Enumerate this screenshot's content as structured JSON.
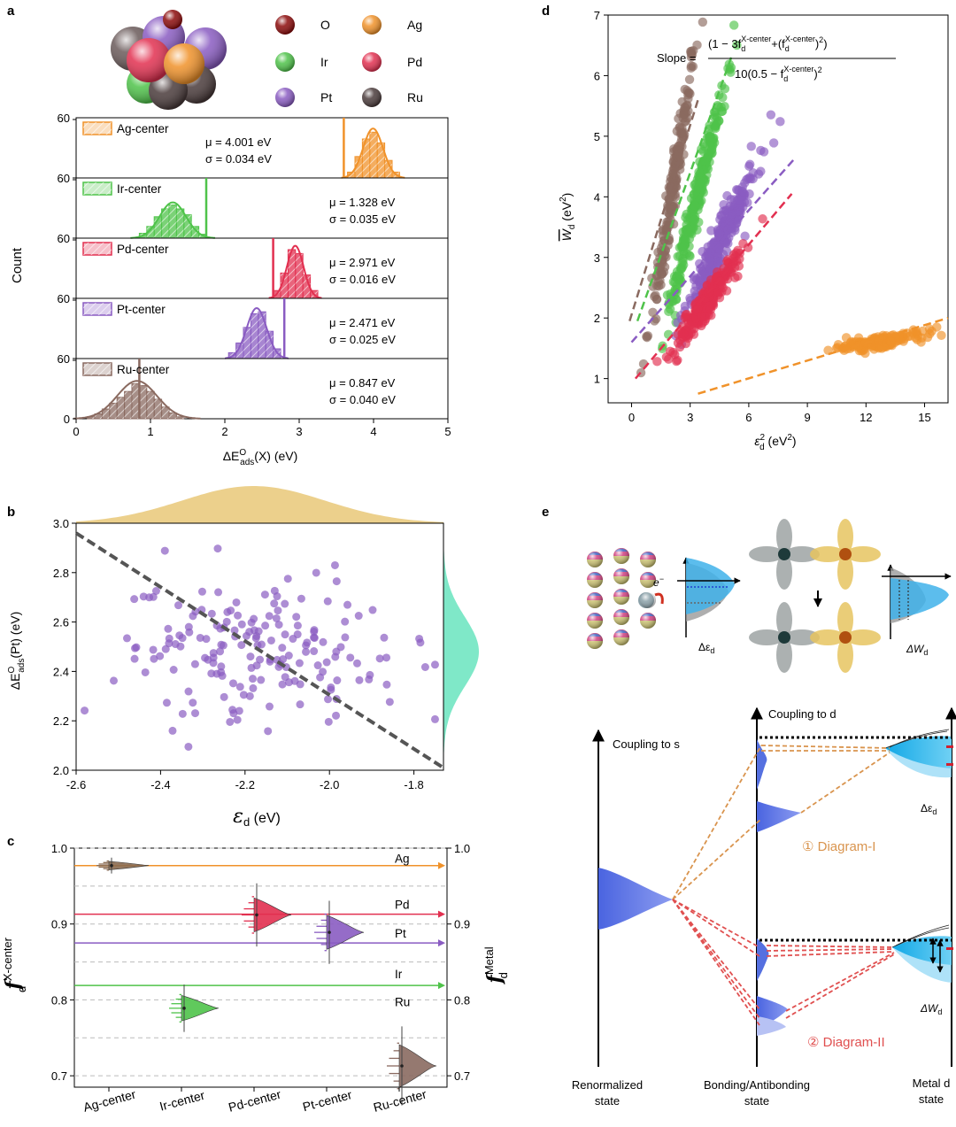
{
  "panel_labels": {
    "a": "a",
    "b": "b",
    "c": "c",
    "d": "d",
    "e": "e"
  },
  "colors": {
    "O": "#8b0a0a",
    "Ag": "#f0922a",
    "Ir": "#4fc34a",
    "Pd": "#e23050",
    "Pt": "#8a5cc2",
    "Ru": "#8a6a60",
    "Ru_sphere": "#4a3b3b",
    "marginal_top": "#ecd08c",
    "marginal_right": "#7fe8c8",
    "blue_state": "#5570e0",
    "metal_d": "#2bb5ea",
    "diagram_I": "#d9944e",
    "diagram_II": "#e05050"
  },
  "legend_a": [
    {
      "el": "O",
      "label": "O",
      "color": "#8b0a0a"
    },
    {
      "el": "Ag",
      "label": "Ag",
      "color": "#f0922a"
    },
    {
      "el": "Ir",
      "label": "Ir",
      "color": "#4fc34a"
    },
    {
      "el": "Pd",
      "label": "Pd",
      "color": "#e23050"
    },
    {
      "el": "Pt",
      "label": "Pt",
      "color": "#8a5cc2"
    },
    {
      "el": "Ru",
      "label": "Ru",
      "color": "#4a3b3b"
    }
  ],
  "panel_e_text": {
    "delta_eps": "Δε",
    "delta_eps_sub": "d",
    "delta_w": "ΔW",
    "delta_w_sub": "d",
    "electron": "e",
    "electron_sup": "−",
    "coupling_s": "Coupling to s",
    "coupling_d": "Coupling to d",
    "diagram1": "① Diagram-I",
    "diagram2": "② Diagram-II",
    "renorm1": "Renormalized",
    "renorm2": "state",
    "bond1": "Bonding/Antibonding",
    "bond2": "state",
    "metal1": "Metal d",
    "metal2": "state",
    "delta_eps2": "Δε",
    "delta_eps2_sub": "d",
    "delta_w2": "ΔW",
    "delta_w2_sub": "d"
  },
  "chart_data": [
    {
      "panel": "a",
      "type": "bar",
      "xlabel": "ΔE",
      "xlabel_sup": "O",
      "xlabel_sub": "ads",
      "xlabel_rest": "(X) (eV)",
      "ylabel": "Count",
      "xlim": [
        0,
        5
      ],
      "xticks": [
        0,
        1,
        2,
        3,
        4,
        5
      ],
      "ylim": [
        0,
        60
      ],
      "yticks": [
        0,
        60
      ],
      "subplots": [
        {
          "name": "Ag-center",
          "color": "#f0922a",
          "mu": 4.001,
          "sigma": 0.034,
          "mu_text": "μ = 4.001 eV",
          "sigma_text": "σ = 0.034 eV",
          "vline": 3.6,
          "bins": [
            3.7,
            3.8,
            3.9,
            4.0,
            4.1,
            4.2,
            4.3
          ],
          "counts": [
            6,
            22,
            40,
            47,
            36,
            18,
            6
          ],
          "text_pos": "left"
        },
        {
          "name": "Ir-center",
          "color": "#4fc34a",
          "mu": 1.328,
          "sigma": 0.035,
          "mu_text": "μ = 1.328 eV",
          "sigma_text": "σ = 0.035 eV",
          "vline": 1.75,
          "bins": [
            0.9,
            1.0,
            1.1,
            1.2,
            1.3,
            1.4,
            1.5,
            1.6,
            1.7
          ],
          "counts": [
            5,
            12,
            22,
            30,
            34,
            30,
            24,
            12,
            4
          ],
          "text_pos": "right"
        },
        {
          "name": "Pd-center",
          "color": "#e23050",
          "mu": 2.971,
          "sigma": 0.016,
          "mu_text": "μ = 2.971 eV",
          "sigma_text": "σ = 0.016 eV",
          "vline": 2.65,
          "bins": [
            2.7,
            2.8,
            2.9,
            3.0,
            3.1,
            3.2
          ],
          "counts": [
            8,
            26,
            50,
            46,
            24,
            8
          ],
          "text_pos": "right"
        },
        {
          "name": "Pt-center",
          "color": "#8a5cc2",
          "mu": 2.471,
          "sigma": 0.025,
          "mu_text": "μ = 2.471 eV",
          "sigma_text": "σ = 0.025 eV",
          "vline": 2.8,
          "bins": [
            2.1,
            2.2,
            2.3,
            2.4,
            2.5,
            2.6,
            2.7
          ],
          "counts": [
            6,
            16,
            32,
            46,
            48,
            28,
            10
          ],
          "text_pos": "right"
        },
        {
          "name": "Ru-center",
          "color": "#8a6a60",
          "mu": 0.847,
          "sigma": 0.04,
          "mu_text": "μ = 0.847 eV",
          "sigma_text": "σ = 0.040 eV",
          "vline": 0.85,
          "bins": [
            0.2,
            0.3,
            0.4,
            0.5,
            0.6,
            0.7,
            0.8,
            0.9,
            1.0,
            1.1,
            1.2,
            1.3,
            1.4
          ],
          "counts": [
            2,
            5,
            10,
            16,
            22,
            28,
            36,
            34,
            28,
            20,
            12,
            6,
            2
          ],
          "text_pos": "right"
        }
      ]
    },
    {
      "panel": "b",
      "type": "scatter",
      "xlabel": "ε",
      "xlabel_sub": "d",
      "xlabel_rest": " (eV)",
      "ylabel": "ΔE",
      "ylabel_sup": "O",
      "ylabel_sub": "ads",
      "ylabel_rest": "(Pt) (eV)",
      "xlim": [
        -2.6,
        -1.73
      ],
      "xticks": [
        -2.6,
        -2.4,
        -2.2,
        -2.0,
        -1.8
      ],
      "xticklabels": [
        "-2.6",
        "-2.4",
        "-2.2",
        "-2.0",
        "-1.8"
      ],
      "ylim": [
        2.0,
        3.0
      ],
      "yticks": [
        2.0,
        2.2,
        2.4,
        2.6,
        2.8,
        3.0
      ],
      "yticklabels": [
        "2.0",
        "2.2",
        "2.4",
        "2.6",
        "2.8",
        "3.0"
      ],
      "color": "#8a5cc2",
      "fit_line": [
        [
          -2.6,
          2.96
        ],
        [
          -1.73,
          2.01
        ]
      ],
      "n_points": 180,
      "mean_x": -2.18,
      "mean_y": 2.48,
      "sd_x": 0.17,
      "sd_y": 0.14
    },
    {
      "panel": "c",
      "type": "scatter",
      "ylabel": "f",
      "ylabel_sub": "d",
      "ylabel_sup": "X-center",
      "ylabel_right": "f",
      "ylabel_right_sub": "d",
      "ylabel_right_sup": "Metal",
      "ylim": [
        0.685,
        1.0
      ],
      "yticks": [
        0.7,
        0.8,
        0.9,
        1.0
      ],
      "yticklabels": [
        "0.7",
        "0.8",
        "0.9",
        "1.0"
      ],
      "grid_dashed": [
        0.7,
        0.75,
        0.8,
        0.85,
        0.9,
        0.95,
        1.0
      ],
      "categories": [
        "Ag-center",
        "Ir-center",
        "Pd-center",
        "Pt-center",
        "Ru-center"
      ],
      "metal_lines": [
        {
          "name": "Ag",
          "value": 0.977,
          "color": "#f0922a"
        },
        {
          "name": "Pd",
          "value": 0.913,
          "color": "#e23050"
        },
        {
          "name": "Pt",
          "value": 0.875,
          "color": "#8a5cc2"
        },
        {
          "name": "Ir",
          "value": 0.819,
          "color": "#4fc34a"
        },
        {
          "name": "Ru",
          "value": 0.815,
          "color": "#6a4a40"
        }
      ],
      "distributions": [
        {
          "name": "Ag-center",
          "value": 0.977,
          "spread": 0.005,
          "color": "#8a6a50"
        },
        {
          "name": "Ir-center",
          "value": 0.789,
          "spread": 0.015,
          "color": "#4fc34a"
        },
        {
          "name": "Pd-center",
          "value": 0.912,
          "spread": 0.02,
          "color": "#e23050"
        },
        {
          "name": "Pt-center",
          "value": 0.889,
          "spread": 0.02,
          "color": "#8a5cc2"
        },
        {
          "name": "Ru-center",
          "value": 0.713,
          "spread": 0.025,
          "color": "#8a6a60"
        }
      ]
    },
    {
      "panel": "d",
      "type": "scatter",
      "xlabel": "ε",
      "xlabel_sub": "d",
      "xlabel_sup": "2",
      "xlabel_rest": " (eV",
      "xlabel_rest_sup": "2",
      "xlabel_end": ")",
      "ylabel": "W",
      "ylabel_sub": "d",
      "ylabel_rest": " (eV",
      "ylabel_rest_sup": "2",
      "ylabel_end": ")",
      "xlim": [
        -1.2,
        16.2
      ],
      "xticks": [
        0,
        3,
        6,
        9,
        12,
        15
      ],
      "xticklabels": [
        "0",
        "3",
        "6",
        "9",
        "12",
        "15"
      ],
      "ylim": [
        0.6,
        7.0
      ],
      "yticks": [
        1,
        2,
        3,
        4,
        5,
        6,
        7
      ],
      "yticklabels": [
        "1",
        "2",
        "3",
        "4",
        "5",
        "6",
        "7"
      ],
      "formula": {
        "lhs": "Slope =",
        "num": "(1 − 3f",
        "num_sub": "d",
        "num_sup": "X-center",
        "num_mid": "+(f",
        "num_sub2": "d",
        "num_sup2": "X-center",
        "num_end": ")",
        "num_end_sup": "2",
        "num_close": ")",
        "den": "10(0.5 − f",
        "den_sub": "d",
        "den_sup": "X-center",
        "den_end": ")",
        "den_end_sup": "2"
      },
      "clusters": [
        {
          "name": "Ru",
          "color": "#8a6a60",
          "cx": 2.1,
          "cy": 4.1,
          "sx": 0.4,
          "sy": 0.45,
          "slope": 2.0,
          "n": 220,
          "line": [
            [
              -0.1,
              1.95
            ],
            [
              3.4,
              5.6
            ]
          ]
        },
        {
          "name": "Ir",
          "color": "#4fc34a",
          "cx": 3.4,
          "cy": 4.05,
          "sx": 0.5,
          "sy": 0.4,
          "slope": 1.3,
          "n": 260,
          "line": [
            [
              0.3,
              1.95
            ],
            [
              5.1,
              6.3
            ]
          ]
        },
        {
          "name": "Pt",
          "color": "#8a5cc2",
          "cx": 4.6,
          "cy": 3.3,
          "sx": 0.6,
          "sy": 0.4,
          "slope": 0.65,
          "n": 260,
          "line": [
            [
              0.0,
              1.6
            ],
            [
              8.4,
              4.65
            ]
          ]
        },
        {
          "name": "Pd",
          "color": "#e23050",
          "cx": 3.9,
          "cy": 2.3,
          "sx": 0.55,
          "sy": 0.25,
          "slope": 0.45,
          "n": 230,
          "line": [
            [
              0.2,
              1.0
            ],
            [
              8.2,
              4.05
            ]
          ]
        },
        {
          "name": "Ag",
          "color": "#f0922a",
          "cx": 12.6,
          "cy": 1.6,
          "sx": 0.8,
          "sy": 0.1,
          "slope": 0.05,
          "n": 180,
          "line": [
            [
              3.4,
              0.75
            ],
            [
              16.2,
              2.0
            ]
          ]
        }
      ]
    }
  ]
}
